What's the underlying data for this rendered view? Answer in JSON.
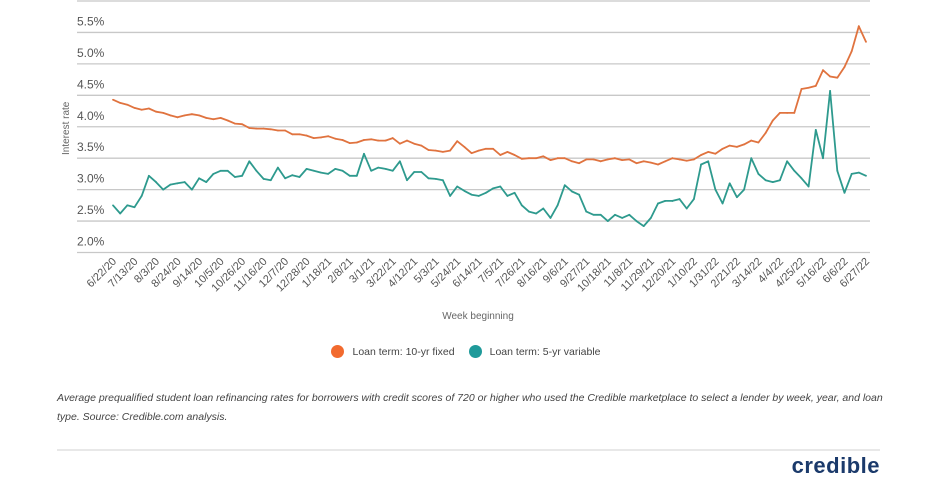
{
  "chart_data": {
    "type": "line",
    "xlabel": "Week beginning",
    "ylabel": "Interest rate",
    "ylim": [
      2.0,
      6.0
    ],
    "yticks": [
      "2.0%",
      "2.5%",
      "3.0%",
      "3.5%",
      "4.0%",
      "4.5%",
      "5.0%",
      "5.5%"
    ],
    "grid": true,
    "legend_position": "bottom",
    "x_tick_labels": [
      "6/22/20",
      "7/13/20",
      "8/3/20",
      "8/24/20",
      "9/14/20",
      "10/5/20",
      "10/26/20",
      "11/16/20",
      "12/7/20",
      "12/28/20",
      "1/18/21",
      "2/8/21",
      "3/1/21",
      "3/22/21",
      "4/12/21",
      "5/3/21",
      "5/24/21",
      "6/14/21",
      "7/5/21",
      "7/26/21",
      "8/16/21",
      "9/6/21",
      "9/27/21",
      "10/18/21",
      "11/8/21",
      "11/29/21",
      "12/20/21",
      "1/10/22",
      "1/31/22",
      "2/21/22",
      "3/14/22",
      "4/4/22",
      "4/25/22",
      "5/16/22",
      "6/6/22",
      "6/27/22"
    ],
    "x_start": "6/22/20",
    "x_interval": "weekly",
    "series": [
      {
        "name": "Loan term: 10-yr fixed",
        "color": "#e0733f",
        "legend_color": "#f26a2e",
        "values": [
          4.43,
          4.38,
          4.35,
          4.3,
          4.27,
          4.29,
          4.24,
          4.22,
          4.18,
          4.15,
          4.18,
          4.2,
          4.18,
          4.14,
          4.12,
          4.14,
          4.1,
          4.05,
          4.04,
          3.98,
          3.97,
          3.97,
          3.96,
          3.94,
          3.94,
          3.88,
          3.88,
          3.86,
          3.82,
          3.83,
          3.85,
          3.81,
          3.79,
          3.74,
          3.75,
          3.79,
          3.8,
          3.78,
          3.78,
          3.82,
          3.73,
          3.78,
          3.73,
          3.7,
          3.63,
          3.62,
          3.6,
          3.62,
          3.77,
          3.68,
          3.58,
          3.62,
          3.65,
          3.65,
          3.55,
          3.6,
          3.55,
          3.49,
          3.5,
          3.5,
          3.53,
          3.47,
          3.5,
          3.5,
          3.45,
          3.42,
          3.48,
          3.48,
          3.45,
          3.48,
          3.5,
          3.47,
          3.48,
          3.42,
          3.45,
          3.43,
          3.4,
          3.45,
          3.5,
          3.48,
          3.46,
          3.48,
          3.55,
          3.6,
          3.57,
          3.65,
          3.7,
          3.68,
          3.72,
          3.78,
          3.75,
          3.9,
          4.1,
          4.22,
          4.22,
          4.22,
          4.6,
          4.62,
          4.65,
          4.9,
          4.8,
          4.78,
          4.95,
          5.2,
          5.6,
          5.35
        ]
      },
      {
        "name": "Loan term: 5-yr variable",
        "color": "#2e9a8e",
        "legend_color": "#1f9a9a",
        "values": [
          2.75,
          2.62,
          2.75,
          2.72,
          2.9,
          3.22,
          3.12,
          3.0,
          3.08,
          3.1,
          3.12,
          3.0,
          3.18,
          3.12,
          3.25,
          3.3,
          3.3,
          3.2,
          3.22,
          3.45,
          3.3,
          3.17,
          3.15,
          3.35,
          3.18,
          3.23,
          3.2,
          3.33,
          3.3,
          3.27,
          3.25,
          3.33,
          3.3,
          3.22,
          3.22,
          3.57,
          3.3,
          3.35,
          3.33,
          3.3,
          3.45,
          3.15,
          3.28,
          3.28,
          3.18,
          3.17,
          3.15,
          2.9,
          3.05,
          2.98,
          2.92,
          2.9,
          2.95,
          3.02,
          3.05,
          2.9,
          2.95,
          2.75,
          2.65,
          2.62,
          2.7,
          2.55,
          2.75,
          3.07,
          2.97,
          2.92,
          2.65,
          2.6,
          2.6,
          2.5,
          2.6,
          2.55,
          2.6,
          2.5,
          2.42,
          2.55,
          2.78,
          2.82,
          2.82,
          2.85,
          2.7,
          2.85,
          3.4,
          3.45,
          3.0,
          2.78,
          3.1,
          2.88,
          3.0,
          3.5,
          3.25,
          3.15,
          3.12,
          3.15,
          3.45,
          3.3,
          3.18,
          3.05,
          3.95,
          3.5,
          4.57,
          3.3,
          2.95,
          3.25,
          3.27,
          3.22
        ]
      }
    ]
  },
  "legend": {
    "items": [
      "Loan term: 10-yr fixed",
      "Loan term: 5-yr variable"
    ]
  },
  "caption": "Average prequalified student loan refinancing rates for borrowers with credit scores of 720 or higher who used the Credible marketplace to select a lender by week, year, and loan type. Source: Credible.com analysis.",
  "logo": "credible"
}
